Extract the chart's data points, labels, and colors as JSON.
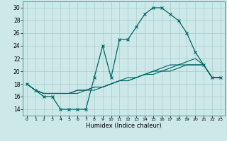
{
  "title": "",
  "xlabel": "Humidex (Indice chaleur)",
  "bg_color": "#cce8e8",
  "grid_color": "#aacccc",
  "line_color": "#006666",
  "xlim": [
    -0.5,
    23.5
  ],
  "ylim": [
    13.0,
    31.0
  ],
  "xticks": [
    0,
    1,
    2,
    3,
    4,
    5,
    6,
    7,
    8,
    9,
    10,
    11,
    12,
    13,
    14,
    15,
    16,
    17,
    18,
    19,
    20,
    21,
    22,
    23
  ],
  "yticks": [
    14,
    16,
    18,
    20,
    22,
    24,
    26,
    28,
    30
  ],
  "series": [
    [
      18,
      17,
      16,
      16,
      14,
      14,
      14,
      14,
      19,
      24,
      19,
      25,
      25,
      27,
      29,
      30,
      30,
      29,
      28,
      26,
      23,
      21,
      19,
      19
    ],
    [
      18,
      17,
      16.5,
      16.5,
      16.5,
      16.5,
      16.5,
      17,
      17,
      17.5,
      18,
      18.5,
      18.5,
      19,
      19.5,
      19.5,
      20,
      20,
      20.5,
      21,
      21,
      21,
      19,
      19
    ],
    [
      18,
      17,
      16.5,
      16.5,
      16.5,
      16.5,
      17,
      17,
      17.5,
      17.5,
      18,
      18.5,
      18.5,
      19,
      19.5,
      20,
      20,
      20.5,
      21,
      21,
      21,
      21,
      19,
      19
    ],
    [
      18,
      17,
      16.5,
      16.5,
      16.5,
      16.5,
      17,
      17,
      17.5,
      17.5,
      18,
      18.5,
      19,
      19,
      19.5,
      20,
      20.5,
      21,
      21,
      21.5,
      22,
      21,
      19,
      19
    ]
  ]
}
